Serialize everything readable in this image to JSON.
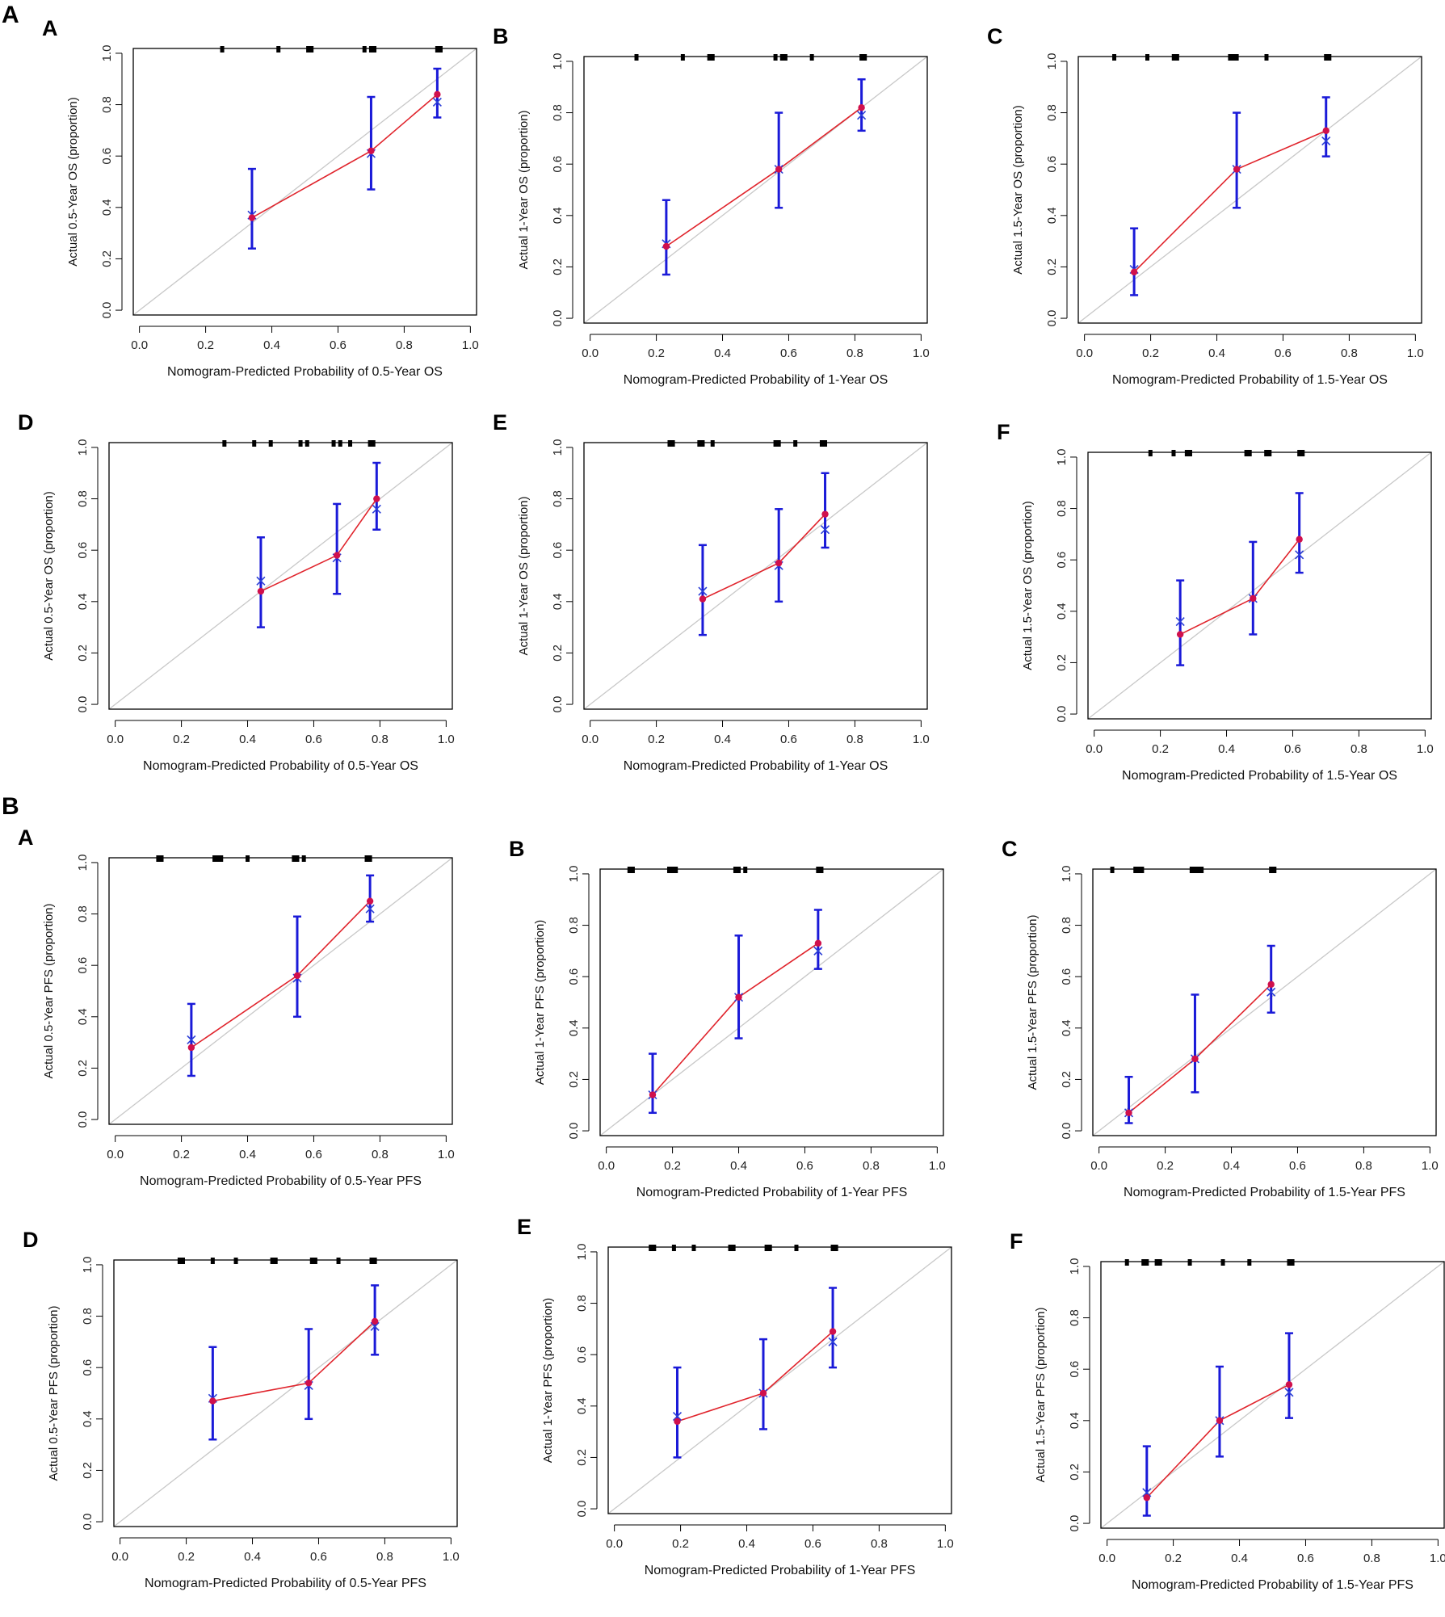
{
  "section_labels": {
    "a": "A",
    "b": "B"
  },
  "colors": {
    "observed": "#d0104c",
    "corrected": "#2b3fd6",
    "errorbar": "#1a1ad8",
    "line": "#e0242c",
    "ideal": "#c8c8c8",
    "rug": "#000000"
  },
  "chart_data": [
    {
      "panel": "A",
      "type": "scatter",
      "xlabel": "Nomogram-Predicted Probability of 0.5-Year OS",
      "ylabel": "Actual 0.5-Year OS (proportion)",
      "xlim": [
        0,
        1
      ],
      "ylim": [
        0,
        1
      ],
      "xticks": [
        "0.0",
        "0.2",
        "0.4",
        "0.6",
        "0.8",
        "1.0"
      ],
      "yticks": [
        "0.0",
        "0.2",
        "0.4",
        "0.6",
        "0.8",
        "1.0"
      ],
      "observed": [
        {
          "x": 0.34,
          "y": 0.36
        },
        {
          "x": 0.7,
          "y": 0.62
        },
        {
          "x": 0.9,
          "y": 0.84
        }
      ],
      "corrected": [
        {
          "x": 0.34,
          "y": 0.37
        },
        {
          "x": 0.7,
          "y": 0.61
        },
        {
          "x": 0.9,
          "y": 0.81
        }
      ],
      "ci": [
        {
          "x": 0.34,
          "lo": 0.24,
          "hi": 0.55
        },
        {
          "x": 0.7,
          "lo": 0.47,
          "hi": 0.83
        },
        {
          "x": 0.9,
          "lo": 0.75,
          "hi": 0.94
        }
      ],
      "rug": [
        0.25,
        0.42,
        0.51,
        0.52,
        0.68,
        0.7,
        0.71,
        0.9,
        0.91
      ]
    },
    {
      "panel": "B",
      "type": "scatter",
      "xlabel": "Nomogram-Predicted Probability of 1-Year OS",
      "ylabel": "Actual 1-Year OS (proportion)",
      "xlim": [
        0,
        1
      ],
      "ylim": [
        0,
        1
      ],
      "xticks": [
        "0.0",
        "0.2",
        "0.4",
        "0.6",
        "0.8",
        "1.0"
      ],
      "yticks": [
        "0.0",
        "0.2",
        "0.4",
        "0.6",
        "0.8",
        "1.0"
      ],
      "observed": [
        {
          "x": 0.23,
          "y": 0.28
        },
        {
          "x": 0.57,
          "y": 0.58
        },
        {
          "x": 0.82,
          "y": 0.82
        }
      ],
      "corrected": [
        {
          "x": 0.23,
          "y": 0.29
        },
        {
          "x": 0.57,
          "y": 0.58
        },
        {
          "x": 0.82,
          "y": 0.79
        }
      ],
      "ci": [
        {
          "x": 0.23,
          "lo": 0.17,
          "hi": 0.46
        },
        {
          "x": 0.57,
          "lo": 0.43,
          "hi": 0.8
        },
        {
          "x": 0.82,
          "lo": 0.73,
          "hi": 0.93
        }
      ],
      "rug": [
        0.14,
        0.28,
        0.36,
        0.37,
        0.56,
        0.58,
        0.59,
        0.67,
        0.82,
        0.83
      ]
    },
    {
      "panel": "C",
      "type": "scatter",
      "xlabel": "Nomogram-Predicted Probability of 1.5-Year OS",
      "ylabel": "Actual 1.5-Year OS (proportion)",
      "xlim": [
        0,
        1
      ],
      "ylim": [
        0,
        1
      ],
      "xticks": [
        "0.0",
        "0.2",
        "0.4",
        "0.6",
        "0.8",
        "1.0"
      ],
      "yticks": [
        "0.0",
        "0.2",
        "0.4",
        "0.6",
        "0.8",
        "1.0"
      ],
      "observed": [
        {
          "x": 0.15,
          "y": 0.18
        },
        {
          "x": 0.46,
          "y": 0.58
        },
        {
          "x": 0.73,
          "y": 0.73
        }
      ],
      "corrected": [
        {
          "x": 0.15,
          "y": 0.19
        },
        {
          "x": 0.46,
          "y": 0.58
        },
        {
          "x": 0.73,
          "y": 0.69
        }
      ],
      "ci": [
        {
          "x": 0.15,
          "lo": 0.09,
          "hi": 0.35
        },
        {
          "x": 0.46,
          "lo": 0.43,
          "hi": 0.8
        },
        {
          "x": 0.73,
          "lo": 0.63,
          "hi": 0.86
        }
      ],
      "rug": [
        0.09,
        0.19,
        0.27,
        0.28,
        0.44,
        0.45,
        0.46,
        0.55,
        0.73,
        0.74
      ]
    },
    {
      "panel": "D",
      "type": "scatter",
      "xlabel": "Nomogram-Predicted Probability of 0.5-Year OS",
      "ylabel": "Actual 0.5-Year OS (proportion)",
      "xlim": [
        0,
        1
      ],
      "ylim": [
        0,
        1
      ],
      "xticks": [
        "0.0",
        "0.2",
        "0.4",
        "0.6",
        "0.8",
        "1.0"
      ],
      "yticks": [
        "0.0",
        "0.2",
        "0.4",
        "0.6",
        "0.8",
        "1.0"
      ],
      "observed": [
        {
          "x": 0.44,
          "y": 0.44
        },
        {
          "x": 0.67,
          "y": 0.58
        },
        {
          "x": 0.79,
          "y": 0.8
        }
      ],
      "corrected": [
        {
          "x": 0.44,
          "y": 0.48
        },
        {
          "x": 0.67,
          "y": 0.57
        },
        {
          "x": 0.79,
          "y": 0.76
        }
      ],
      "ci": [
        {
          "x": 0.44,
          "lo": 0.3,
          "hi": 0.65
        },
        {
          "x": 0.67,
          "lo": 0.43,
          "hi": 0.78
        },
        {
          "x": 0.79,
          "lo": 0.68,
          "hi": 0.94
        }
      ],
      "rug": [
        0.33,
        0.42,
        0.47,
        0.56,
        0.58,
        0.66,
        0.68,
        0.71,
        0.77,
        0.78
      ]
    },
    {
      "panel": "E",
      "type": "scatter",
      "xlabel": "Nomogram-Predicted Probability of 1-Year OS",
      "ylabel": "Actual 1-Year OS (proportion)",
      "xlim": [
        0,
        1
      ],
      "ylim": [
        0,
        1
      ],
      "xticks": [
        "0.0",
        "0.2",
        "0.4",
        "0.6",
        "0.8",
        "1.0"
      ],
      "yticks": [
        "0.0",
        "0.2",
        "0.4",
        "0.6",
        "0.8",
        "1.0"
      ],
      "observed": [
        {
          "x": 0.34,
          "y": 0.41
        },
        {
          "x": 0.57,
          "y": 0.55
        },
        {
          "x": 0.71,
          "y": 0.74
        }
      ],
      "corrected": [
        {
          "x": 0.34,
          "y": 0.44
        },
        {
          "x": 0.57,
          "y": 0.54
        },
        {
          "x": 0.71,
          "y": 0.68
        }
      ],
      "ci": [
        {
          "x": 0.34,
          "lo": 0.27,
          "hi": 0.62
        },
        {
          "x": 0.57,
          "lo": 0.4,
          "hi": 0.76
        },
        {
          "x": 0.71,
          "lo": 0.61,
          "hi": 0.9
        }
      ],
      "rug": [
        0.24,
        0.25,
        0.33,
        0.34,
        0.37,
        0.56,
        0.57,
        0.62,
        0.7,
        0.71
      ]
    },
    {
      "panel": "F",
      "type": "scatter",
      "xlabel": "Nomogram-Predicted Probability of 1.5-Year OS",
      "ylabel": "Actual 1.5-Year OS (proportion)",
      "xlim": [
        0,
        1
      ],
      "ylim": [
        0,
        1
      ],
      "xticks": [
        "0.0",
        "0.2",
        "0.4",
        "0.6",
        "0.8",
        "1.0"
      ],
      "yticks": [
        "0.0",
        "0.2",
        "0.4",
        "0.6",
        "0.8",
        "1.0"
      ],
      "observed": [
        {
          "x": 0.26,
          "y": 0.31
        },
        {
          "x": 0.48,
          "y": 0.45
        },
        {
          "x": 0.62,
          "y": 0.68
        }
      ],
      "corrected": [
        {
          "x": 0.26,
          "y": 0.36
        },
        {
          "x": 0.48,
          "y": 0.45
        },
        {
          "x": 0.62,
          "y": 0.62
        }
      ],
      "ci": [
        {
          "x": 0.26,
          "lo": 0.19,
          "hi": 0.52
        },
        {
          "x": 0.48,
          "lo": 0.31,
          "hi": 0.67
        },
        {
          "x": 0.62,
          "lo": 0.55,
          "hi": 0.86
        }
      ],
      "rug": [
        0.17,
        0.24,
        0.28,
        0.29,
        0.46,
        0.47,
        0.52,
        0.53,
        0.62,
        0.63
      ]
    },
    {
      "panel": "A",
      "type": "scatter",
      "xlabel": "Nomogram-Predicted Probability of 0.5-Year PFS",
      "ylabel": "Actual 0.5-Year PFS (proportion)",
      "xlim": [
        0,
        1
      ],
      "ylim": [
        0,
        1
      ],
      "xticks": [
        "0.0",
        "0.2",
        "0.4",
        "0.6",
        "0.8",
        "1.0"
      ],
      "yticks": [
        "0.0",
        "0.2",
        "0.4",
        "0.6",
        "0.8",
        "1.0"
      ],
      "observed": [
        {
          "x": 0.23,
          "y": 0.28
        },
        {
          "x": 0.55,
          "y": 0.56
        },
        {
          "x": 0.77,
          "y": 0.85
        }
      ],
      "corrected": [
        {
          "x": 0.23,
          "y": 0.31
        },
        {
          "x": 0.55,
          "y": 0.55
        },
        {
          "x": 0.77,
          "y": 0.82
        }
      ],
      "ci": [
        {
          "x": 0.23,
          "lo": 0.17,
          "hi": 0.45
        },
        {
          "x": 0.55,
          "lo": 0.4,
          "hi": 0.79
        },
        {
          "x": 0.77,
          "lo": 0.77,
          "hi": 0.95
        }
      ],
      "rug": [
        0.13,
        0.14,
        0.3,
        0.31,
        0.32,
        0.4,
        0.54,
        0.55,
        0.57,
        0.76,
        0.77
      ]
    },
    {
      "panel": "B",
      "type": "scatter",
      "xlabel": "Nomogram-Predicted Probability of 1-Year PFS",
      "ylabel": "Actual 1-Year PFS (proportion)",
      "xlim": [
        0,
        1
      ],
      "ylim": [
        0,
        1
      ],
      "xticks": [
        "0.0",
        "0.2",
        "0.4",
        "0.6",
        "0.8",
        "1.0"
      ],
      "yticks": [
        "0.0",
        "0.2",
        "0.4",
        "0.6",
        "0.8",
        "1.0"
      ],
      "observed": [
        {
          "x": 0.14,
          "y": 0.14
        },
        {
          "x": 0.4,
          "y": 0.52
        },
        {
          "x": 0.64,
          "y": 0.73
        }
      ],
      "corrected": [
        {
          "x": 0.14,
          "y": 0.14
        },
        {
          "x": 0.4,
          "y": 0.52
        },
        {
          "x": 0.64,
          "y": 0.7
        }
      ],
      "ci": [
        {
          "x": 0.14,
          "lo": 0.07,
          "hi": 0.3
        },
        {
          "x": 0.4,
          "lo": 0.36,
          "hi": 0.76
        },
        {
          "x": 0.64,
          "lo": 0.63,
          "hi": 0.86
        }
      ],
      "rug": [
        0.07,
        0.08,
        0.19,
        0.2,
        0.21,
        0.39,
        0.4,
        0.42,
        0.64,
        0.65
      ]
    },
    {
      "panel": "C",
      "type": "scatter",
      "xlabel": "Nomogram-Predicted Probability of 1.5-Year PFS",
      "ylabel": "Actual 1.5-Year PFS (proportion)",
      "xlim": [
        0,
        1
      ],
      "ylim": [
        0,
        1
      ],
      "xticks": [
        "0.0",
        "0.2",
        "0.4",
        "0.6",
        "0.8",
        "1.0"
      ],
      "yticks": [
        "0.0",
        "0.2",
        "0.4",
        "0.6",
        "0.8",
        "1.0"
      ],
      "observed": [
        {
          "x": 0.09,
          "y": 0.07
        },
        {
          "x": 0.29,
          "y": 0.28
        },
        {
          "x": 0.52,
          "y": 0.57
        }
      ],
      "corrected": [
        {
          "x": 0.09,
          "y": 0.07
        },
        {
          "x": 0.29,
          "y": 0.28
        },
        {
          "x": 0.52,
          "y": 0.54
        }
      ],
      "ci": [
        {
          "x": 0.09,
          "lo": 0.03,
          "hi": 0.21
        },
        {
          "x": 0.29,
          "lo": 0.15,
          "hi": 0.53
        },
        {
          "x": 0.52,
          "lo": 0.46,
          "hi": 0.72
        }
      ],
      "rug": [
        0.04,
        0.11,
        0.12,
        0.13,
        0.28,
        0.29,
        0.3,
        0.31,
        0.52,
        0.53
      ]
    },
    {
      "panel": "D",
      "type": "scatter",
      "xlabel": "Nomogram-Predicted Probability of 0.5-Year PFS",
      "ylabel": "Actual 0.5-Year PFS (proportion)",
      "xlim": [
        0,
        1
      ],
      "ylim": [
        0,
        1
      ],
      "xticks": [
        "0.0",
        "0.2",
        "0.4",
        "0.6",
        "0.8",
        "1.0"
      ],
      "yticks": [
        "0.0",
        "0.2",
        "0.4",
        "0.6",
        "0.8",
        "1.0"
      ],
      "observed": [
        {
          "x": 0.28,
          "y": 0.47
        },
        {
          "x": 0.57,
          "y": 0.54
        },
        {
          "x": 0.77,
          "y": 0.78
        }
      ],
      "corrected": [
        {
          "x": 0.28,
          "y": 0.48
        },
        {
          "x": 0.57,
          "y": 0.53
        },
        {
          "x": 0.77,
          "y": 0.76
        }
      ],
      "ci": [
        {
          "x": 0.28,
          "lo": 0.32,
          "hi": 0.68
        },
        {
          "x": 0.57,
          "lo": 0.4,
          "hi": 0.75
        },
        {
          "x": 0.77,
          "lo": 0.65,
          "hi": 0.92
        }
      ],
      "rug": [
        0.18,
        0.19,
        0.28,
        0.35,
        0.46,
        0.47,
        0.58,
        0.59,
        0.66,
        0.76,
        0.77
      ]
    },
    {
      "panel": "E",
      "type": "scatter",
      "xlabel": "Nomogram-Predicted Probability of 1-Year PFS",
      "ylabel": "Actual 1-Year PFS (proportion)",
      "xlim": [
        0,
        1
      ],
      "ylim": [
        0,
        1
      ],
      "xticks": [
        "0.0",
        "0.2",
        "0.4",
        "0.6",
        "0.8",
        "1.0"
      ],
      "yticks": [
        "0.0",
        "0.2",
        "0.4",
        "0.6",
        "0.8",
        "1.0"
      ],
      "observed": [
        {
          "x": 0.19,
          "y": 0.34
        },
        {
          "x": 0.45,
          "y": 0.45
        },
        {
          "x": 0.66,
          "y": 0.69
        }
      ],
      "corrected": [
        {
          "x": 0.19,
          "y": 0.36
        },
        {
          "x": 0.45,
          "y": 0.45
        },
        {
          "x": 0.66,
          "y": 0.65
        }
      ],
      "ci": [
        {
          "x": 0.19,
          "lo": 0.2,
          "hi": 0.55
        },
        {
          "x": 0.45,
          "lo": 0.31,
          "hi": 0.66
        },
        {
          "x": 0.66,
          "lo": 0.55,
          "hi": 0.86
        }
      ],
      "rug": [
        0.11,
        0.12,
        0.18,
        0.24,
        0.35,
        0.36,
        0.46,
        0.47,
        0.55,
        0.66,
        0.67
      ]
    },
    {
      "panel": "F",
      "type": "scatter",
      "xlabel": "Nomogram-Predicted Probability of 1.5-Year PFS",
      "ylabel": "Actual 1.5-Year PFS (proportion)",
      "xlim": [
        0,
        1
      ],
      "ylim": [
        0,
        1
      ],
      "xticks": [
        "0.0",
        "0.2",
        "0.4",
        "0.6",
        "0.8",
        "1.0"
      ],
      "yticks": [
        "0.0",
        "0.2",
        "0.4",
        "0.6",
        "0.8",
        "1.0"
      ],
      "observed": [
        {
          "x": 0.12,
          "y": 0.1
        },
        {
          "x": 0.34,
          "y": 0.4
        },
        {
          "x": 0.55,
          "y": 0.54
        }
      ],
      "corrected": [
        {
          "x": 0.12,
          "y": 0.12
        },
        {
          "x": 0.34,
          "y": 0.4
        },
        {
          "x": 0.55,
          "y": 0.51
        }
      ],
      "ci": [
        {
          "x": 0.12,
          "lo": 0.03,
          "hi": 0.3
        },
        {
          "x": 0.34,
          "lo": 0.26,
          "hi": 0.61
        },
        {
          "x": 0.55,
          "lo": 0.41,
          "hi": 0.74
        }
      ],
      "rug": [
        0.06,
        0.11,
        0.12,
        0.15,
        0.16,
        0.25,
        0.35,
        0.43,
        0.55,
        0.56
      ]
    }
  ]
}
